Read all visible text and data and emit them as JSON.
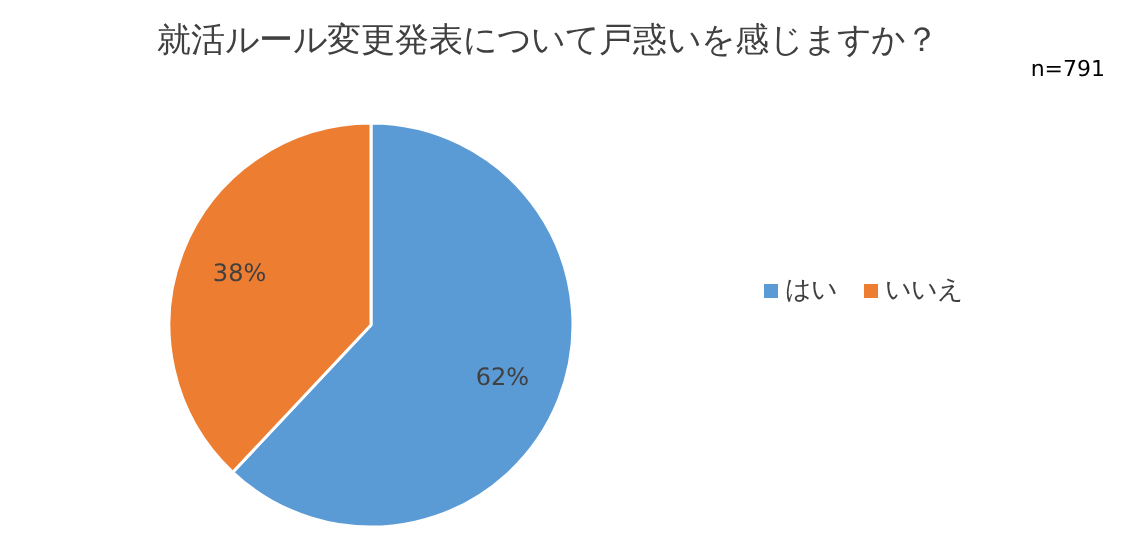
{
  "chart_data": {
    "type": "pie",
    "title": "就活ルール変更発表について戸惑いを感じますか？",
    "categories": [
      "はい",
      "いいえ"
    ],
    "values": [
      62,
      38
    ],
    "colors": [
      "#5b9bd5",
      "#ed7d31"
    ],
    "value_labels": [
      "62%",
      "38%"
    ],
    "legend": "right",
    "annotations": [
      "n=791"
    ]
  }
}
